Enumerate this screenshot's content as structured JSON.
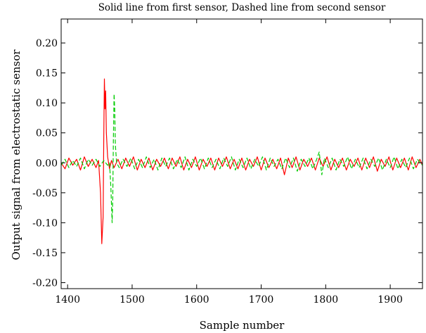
{
  "chart_data": {
    "type": "line",
    "title": "Solid line from first sensor, Dashed line from second sensor",
    "xlabel": "Sample number",
    "ylabel": "Output signal from electrostatic sensor",
    "xlim": [
      1390,
      1950
    ],
    "ylim": [
      -0.21,
      0.24
    ],
    "xticks": [
      "1400",
      "1500",
      "1600",
      "1700",
      "1800",
      "1900"
    ],
    "yticks": [
      "0.20",
      "0.15",
      "0.10",
      "0.05",
      "0.00",
      "-0.05",
      "-0.10",
      "-0.15",
      "-0.20"
    ],
    "grid": false,
    "legend": "none",
    "series": [
      {
        "line_style": "solid",
        "color": "#ff0000",
        "points": [
          [
            1390,
            0.0
          ],
          [
            1396,
            -0.01
          ],
          [
            1402,
            0.008
          ],
          [
            1408,
            -0.004
          ],
          [
            1414,
            0.006
          ],
          [
            1420,
            -0.012
          ],
          [
            1426,
            0.01
          ],
          [
            1432,
            -0.006
          ],
          [
            1438,
            0.006
          ],
          [
            1444,
            -0.008
          ],
          [
            1448,
            0.004
          ],
          [
            1451,
            -0.05
          ],
          [
            1453,
            -0.135
          ],
          [
            1455,
            -0.09
          ],
          [
            1456,
            0.04
          ],
          [
            1457,
            0.14
          ],
          [
            1458,
            0.09
          ],
          [
            1459,
            0.12
          ],
          [
            1460,
            0.05
          ],
          [
            1462,
            0.01
          ],
          [
            1465,
            -0.01
          ],
          [
            1468,
            0.004
          ],
          [
            1472,
            -0.008
          ],
          [
            1478,
            0.006
          ],
          [
            1484,
            -0.01
          ],
          [
            1490,
            0.008
          ],
          [
            1496,
            -0.006
          ],
          [
            1502,
            0.01
          ],
          [
            1508,
            -0.012
          ],
          [
            1514,
            0.006
          ],
          [
            1520,
            -0.008
          ],
          [
            1526,
            0.008
          ],
          [
            1532,
            -0.012
          ],
          [
            1538,
            0.006
          ],
          [
            1544,
            -0.006
          ],
          [
            1550,
            0.008
          ],
          [
            1556,
            -0.01
          ],
          [
            1562,
            0.008
          ],
          [
            1568,
            -0.006
          ],
          [
            1574,
            0.01
          ],
          [
            1580,
            -0.012
          ],
          [
            1586,
            0.006
          ],
          [
            1592,
            -0.008
          ],
          [
            1598,
            0.01
          ],
          [
            1604,
            -0.012
          ],
          [
            1610,
            0.006
          ],
          [
            1616,
            -0.006
          ],
          [
            1622,
            0.008
          ],
          [
            1628,
            -0.012
          ],
          [
            1634,
            0.008
          ],
          [
            1640,
            -0.006
          ],
          [
            1646,
            0.01
          ],
          [
            1652,
            -0.01
          ],
          [
            1658,
            0.006
          ],
          [
            1664,
            -0.01
          ],
          [
            1670,
            0.008
          ],
          [
            1676,
            -0.012
          ],
          [
            1682,
            0.006
          ],
          [
            1688,
            -0.006
          ],
          [
            1694,
            0.01
          ],
          [
            1700,
            -0.012
          ],
          [
            1706,
            0.008
          ],
          [
            1712,
            -0.008
          ],
          [
            1718,
            0.006
          ],
          [
            1724,
            -0.01
          ],
          [
            1730,
            0.008
          ],
          [
            1736,
            -0.02
          ],
          [
            1742,
            0.008
          ],
          [
            1748,
            -0.008
          ],
          [
            1754,
            0.01
          ],
          [
            1760,
            -0.012
          ],
          [
            1766,
            0.006
          ],
          [
            1772,
            -0.006
          ],
          [
            1778,
            0.008
          ],
          [
            1784,
            -0.012
          ],
          [
            1790,
            0.008
          ],
          [
            1796,
            -0.006
          ],
          [
            1802,
            0.01
          ],
          [
            1808,
            -0.012
          ],
          [
            1814,
            0.006
          ],
          [
            1820,
            -0.008
          ],
          [
            1826,
            0.008
          ],
          [
            1832,
            -0.012
          ],
          [
            1838,
            0.006
          ],
          [
            1844,
            -0.006
          ],
          [
            1850,
            0.008
          ],
          [
            1856,
            -0.012
          ],
          [
            1862,
            0.008
          ],
          [
            1868,
            -0.008
          ],
          [
            1874,
            0.01
          ],
          [
            1880,
            -0.014
          ],
          [
            1886,
            0.006
          ],
          [
            1892,
            -0.006
          ],
          [
            1898,
            0.01
          ],
          [
            1904,
            -0.012
          ],
          [
            1910,
            0.008
          ],
          [
            1916,
            -0.008
          ],
          [
            1922,
            0.008
          ],
          [
            1928,
            -0.012
          ],
          [
            1934,
            0.01
          ],
          [
            1940,
            -0.008
          ],
          [
            1946,
            0.006
          ],
          [
            1950,
            -0.004
          ]
        ]
      },
      {
        "line_style": "dashed",
        "color": "#00cc00",
        "points": [
          [
            1390,
            -0.004
          ],
          [
            1396,
            0.006
          ],
          [
            1402,
            -0.008
          ],
          [
            1408,
            0.004
          ],
          [
            1414,
            -0.006
          ],
          [
            1420,
            0.008
          ],
          [
            1426,
            -0.01
          ],
          [
            1432,
            0.006
          ],
          [
            1438,
            -0.004
          ],
          [
            1444,
            0.006
          ],
          [
            1450,
            -0.006
          ],
          [
            1456,
            0.004
          ],
          [
            1462,
            -0.004
          ],
          [
            1465,
            0.0
          ],
          [
            1467,
            -0.04
          ],
          [
            1469,
            -0.1
          ],
          [
            1470,
            -0.06
          ],
          [
            1471,
            0.04
          ],
          [
            1472,
            0.115
          ],
          [
            1473,
            0.09
          ],
          [
            1474,
            0.03
          ],
          [
            1476,
            0.0
          ],
          [
            1480,
            -0.008
          ],
          [
            1486,
            0.006
          ],
          [
            1492,
            -0.006
          ],
          [
            1498,
            0.008
          ],
          [
            1504,
            -0.01
          ],
          [
            1510,
            0.006
          ],
          [
            1516,
            -0.008
          ],
          [
            1522,
            0.01
          ],
          [
            1528,
            -0.008
          ],
          [
            1534,
            0.006
          ],
          [
            1540,
            -0.012
          ],
          [
            1546,
            0.008
          ],
          [
            1552,
            -0.006
          ],
          [
            1558,
            0.008
          ],
          [
            1564,
            -0.01
          ],
          [
            1570,
            0.006
          ],
          [
            1576,
            -0.008
          ],
          [
            1582,
            0.01
          ],
          [
            1588,
            -0.012
          ],
          [
            1594,
            0.006
          ],
          [
            1600,
            -0.006
          ],
          [
            1606,
            0.008
          ],
          [
            1612,
            -0.01
          ],
          [
            1618,
            0.008
          ],
          [
            1624,
            -0.008
          ],
          [
            1630,
            0.006
          ],
          [
            1636,
            -0.01
          ],
          [
            1642,
            0.008
          ],
          [
            1648,
            -0.006
          ],
          [
            1654,
            0.01
          ],
          [
            1660,
            -0.012
          ],
          [
            1666,
            0.006
          ],
          [
            1672,
            -0.008
          ],
          [
            1678,
            0.008
          ],
          [
            1684,
            -0.01
          ],
          [
            1690,
            0.006
          ],
          [
            1696,
            -0.006
          ],
          [
            1702,
            0.01
          ],
          [
            1708,
            -0.012
          ],
          [
            1714,
            0.008
          ],
          [
            1720,
            -0.006
          ],
          [
            1726,
            0.006
          ],
          [
            1732,
            -0.01
          ],
          [
            1738,
            0.008
          ],
          [
            1744,
            -0.008
          ],
          [
            1750,
            0.008
          ],
          [
            1756,
            -0.014
          ],
          [
            1762,
            0.006
          ],
          [
            1768,
            -0.006
          ],
          [
            1774,
            0.008
          ],
          [
            1780,
            -0.01
          ],
          [
            1786,
            0.006
          ],
          [
            1790,
            0.018
          ],
          [
            1794,
            -0.02
          ],
          [
            1798,
            0.008
          ],
          [
            1804,
            -0.008
          ],
          [
            1810,
            0.008
          ],
          [
            1816,
            -0.012
          ],
          [
            1822,
            0.006
          ],
          [
            1828,
            -0.006
          ],
          [
            1834,
            0.01
          ],
          [
            1840,
            -0.01
          ],
          [
            1846,
            0.006
          ],
          [
            1852,
            -0.008
          ],
          [
            1858,
            0.008
          ],
          [
            1864,
            -0.01
          ],
          [
            1870,
            0.006
          ],
          [
            1876,
            -0.006
          ],
          [
            1882,
            0.008
          ],
          [
            1888,
            -0.012
          ],
          [
            1894,
            0.006
          ],
          [
            1900,
            -0.008
          ],
          [
            1906,
            0.01
          ],
          [
            1912,
            -0.01
          ],
          [
            1918,
            0.006
          ],
          [
            1924,
            -0.008
          ],
          [
            1930,
            0.008
          ],
          [
            1936,
            -0.01
          ],
          [
            1942,
            0.006
          ],
          [
            1950,
            -0.004
          ]
        ]
      }
    ]
  }
}
